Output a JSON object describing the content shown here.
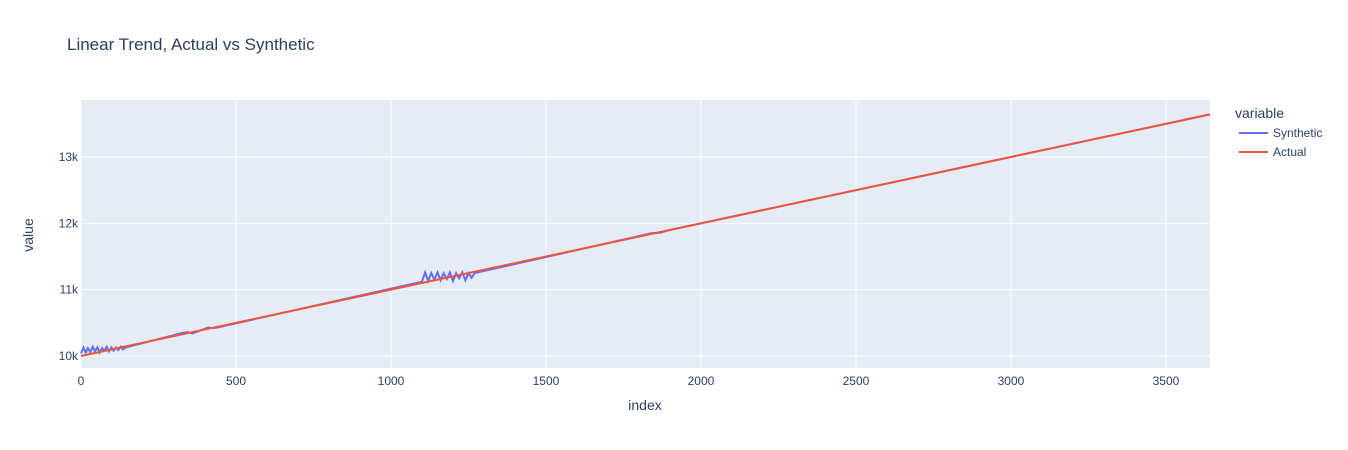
{
  "chart_data": {
    "type": "line",
    "title": "Linear Trend, Actual vs Synthetic",
    "x_label": "index",
    "y_label": "value",
    "legend_title": "variable",
    "legend_position": "right",
    "grid": true,
    "xlim": [
      0,
      3642
    ],
    "ylim": [
      9819,
      13859
    ],
    "xticks": [
      0,
      500,
      1000,
      1500,
      2000,
      2500,
      3000,
      3500
    ],
    "yticks": [
      {
        "value": 10000,
        "label": "10k"
      },
      {
        "value": 11000,
        "label": "11k"
      },
      {
        "value": 12000,
        "label": "12k"
      },
      {
        "value": 13000,
        "label": "13k"
      }
    ],
    "series": [
      {
        "name": "Synthetic",
        "color": "#636efa",
        "x": [
          0,
          8,
          15,
          22,
          30,
          38,
          45,
          53,
          60,
          68,
          75,
          83,
          90,
          98,
          105,
          113,
          120,
          128,
          135,
          145,
          330,
          345,
          360,
          410,
          425,
          440,
          1100,
          1110,
          1120,
          1130,
          1140,
          1150,
          1160,
          1170,
          1180,
          1190,
          1200,
          1210,
          1220,
          1230,
          1240,
          1250,
          1260,
          1270,
          1840,
          1870,
          1890,
          3642
        ],
        "values": [
          10040,
          10130,
          10050,
          10120,
          10060,
          10140,
          10070,
          10130,
          10050,
          10120,
          10080,
          10140,
          10070,
          10130,
          10080,
          10130,
          10090,
          10140,
          10100,
          10130,
          10350,
          10360,
          10340,
          10430,
          10420,
          10430,
          11120,
          11260,
          11130,
          11250,
          11150,
          11260,
          11140,
          11250,
          11160,
          11260,
          11130,
          11250,
          11170,
          11260,
          11140,
          11250,
          11180,
          11250,
          11850,
          11860,
          11890,
          13642
        ]
      },
      {
        "name": "Actual",
        "color": "#ef553b",
        "x": [
          0,
          1000,
          2000,
          3000,
          3642
        ],
        "values": [
          10000,
          11000,
          12000,
          13000,
          13642
        ]
      }
    ]
  }
}
